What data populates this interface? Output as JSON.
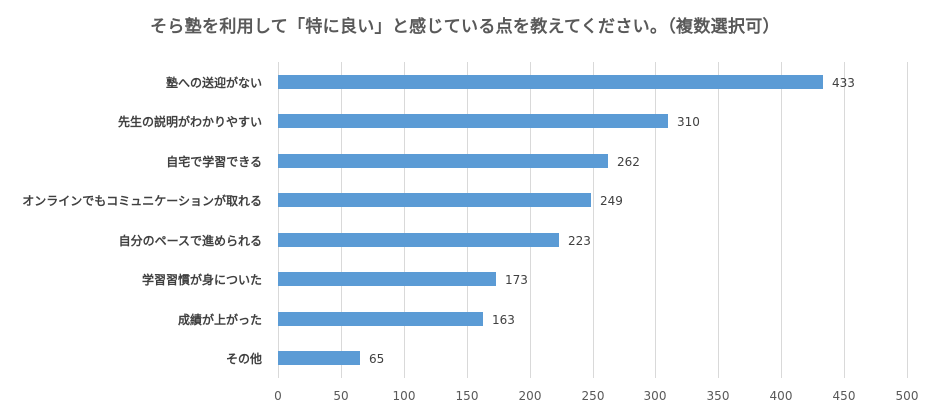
{
  "chart_data": {
    "type": "bar",
    "orientation": "horizontal",
    "title": "そら塾を利用して「特に良い」と感じている点を教えてください。（複数選択可）",
    "xlabel": "",
    "ylabel": "",
    "categories": [
      "塾への送迎がない",
      "先生の説明がわかりやすい",
      "自宅で学習できる",
      "オンラインでもコミュニケーションが取れる",
      "自分のペースで進められる",
      "学習習慣が身についた",
      "成績が上がった",
      "その他"
    ],
    "values": [
      433,
      310,
      262,
      249,
      223,
      173,
      163,
      65
    ],
    "xlim": [
      0,
      500
    ],
    "xticks": [
      "0",
      "50",
      "100",
      "150",
      "200",
      "250",
      "300",
      "350",
      "400",
      "450",
      "500"
    ],
    "grid": true,
    "legend": null,
    "bar_color": "#5b9bd5",
    "data_labels": [
      "433",
      "310",
      "262",
      "249",
      "223",
      "173",
      "163",
      "65"
    ]
  }
}
